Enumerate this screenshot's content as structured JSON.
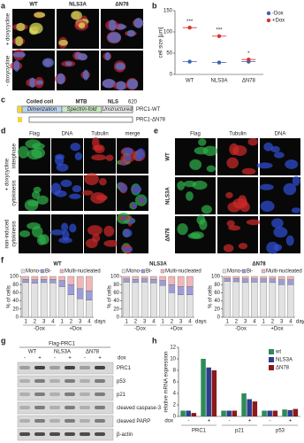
{
  "panel_labels": [
    "a",
    "b",
    "c",
    "d",
    "e",
    "f",
    "g",
    "h"
  ],
  "panel_a": {
    "columns": [
      "WT",
      "NLS3A",
      "ΔN78"
    ],
    "rows": [
      "+ doxycycline",
      "- doxycycline"
    ]
  },
  "panel_c": {
    "domains": [
      "Coiled coil",
      "MTB",
      "NLS"
    ],
    "regions": [
      "Dimerization",
      "Spectrin-fold",
      "Unstructured"
    ],
    "end_residue": "620",
    "constructs": [
      "PRC1-WT",
      "PRC1-ΔN78"
    ]
  },
  "panel_d": {
    "columns": [
      "Flag",
      "DNA",
      "Tubulin",
      "merge"
    ],
    "rows": [
      "interphase",
      "cytokinesis",
      "cytokinesis"
    ],
    "condition": "+ doxycycline",
    "control": "non-induced"
  },
  "panel_e": {
    "columns": [
      "Flag",
      "Tubulin",
      "DNA"
    ],
    "rows": [
      "WT",
      "NLS3A",
      "ΔN78"
    ]
  },
  "panel_g": {
    "construct": "Flag-PRC1",
    "groups": [
      "WT",
      "NLS3A",
      "ΔN78"
    ],
    "dox_label": "dox",
    "lanes": [
      "-",
      "+",
      "-",
      "+",
      "-",
      "+"
    ],
    "bands": [
      "PRC1",
      "p53",
      "p21",
      "cleaved caspase-3",
      "cleaved PARP",
      "β-actin"
    ]
  },
  "chart_data": [
    {
      "type": "dot",
      "ylabel": "cell size [µm]",
      "categories": [
        "WT",
        "NLS3A",
        "ΔN78"
      ],
      "series": [
        {
          "name": "-Dox",
          "color": "#3a62b5",
          "values": [
            30,
            28,
            30
          ]
        },
        {
          "name": "+Dox",
          "color": "#d9342b",
          "values": [
            110,
            90,
            35
          ]
        }
      ],
      "annotations": [
        "***",
        "***",
        "*"
      ],
      "ylim": [
        0,
        150
      ],
      "yticks": [
        0,
        50,
        100,
        150
      ],
      "legend": "upper right"
    },
    {
      "type": "stacked_bar",
      "title": "WT",
      "ylabel": "% of cells",
      "xlabel": "days",
      "categories": [
        "1",
        "2",
        "3",
        "4",
        "1",
        "2",
        "3",
        "4"
      ],
      "groups": [
        "-Dox",
        "+Dox"
      ],
      "series": [
        {
          "name": "Mono-",
          "color": "#e2e2e2",
          "values": [
            85,
            83,
            85,
            84,
            75,
            55,
            45,
            42
          ]
        },
        {
          "name": "Bi-",
          "color": "#9c9cd8",
          "values": [
            8,
            9,
            8,
            9,
            15,
            25,
            25,
            23
          ]
        },
        {
          "name": "Multi-nucleated",
          "color": "#f2b6b6",
          "values": [
            7,
            8,
            7,
            7,
            10,
            20,
            30,
            35
          ]
        }
      ],
      "ylim": [
        0,
        100
      ],
      "yticks": [
        0,
        20,
        40,
        60,
        80,
        100
      ]
    },
    {
      "type": "stacked_bar",
      "title": "NLS3A",
      "ylabel": "% of cells",
      "xlabel": "days",
      "categories": [
        "1",
        "2",
        "3",
        "4",
        "1",
        "2",
        "3",
        "4"
      ],
      "groups": [
        "-Dox",
        "+Dox"
      ],
      "series": [
        {
          "name": "Mono-",
          "color": "#e2e2e2",
          "values": [
            86,
            85,
            86,
            84,
            78,
            60,
            55,
            55
          ]
        },
        {
          "name": "Bi-",
          "color": "#9c9cd8",
          "values": [
            8,
            8,
            8,
            9,
            12,
            20,
            20,
            20
          ]
        },
        {
          "name": "Multi-nucleated",
          "color": "#f2b6b6",
          "values": [
            6,
            7,
            6,
            7,
            10,
            20,
            25,
            25
          ]
        }
      ],
      "ylim": [
        0,
        100
      ],
      "yticks": [
        0,
        20,
        40,
        60,
        80,
        100
      ]
    },
    {
      "type": "stacked_bar",
      "title": "ΔN78",
      "ylabel": "% of cells",
      "xlabel": "days",
      "categories": [
        "1",
        "2",
        "3",
        "4",
        "1",
        "2",
        "3",
        "4"
      ],
      "groups": [
        "-Dox",
        "+Dox"
      ],
      "series": [
        {
          "name": "Mono-",
          "color": "#e2e2e2",
          "values": [
            88,
            87,
            85,
            86,
            86,
            85,
            80,
            80
          ]
        },
        {
          "name": "Bi-",
          "color": "#9c9cd8",
          "values": [
            7,
            8,
            9,
            8,
            8,
            9,
            12,
            12
          ]
        },
        {
          "name": "Multi-nucleated",
          "color": "#f2b6b6",
          "values": [
            5,
            5,
            6,
            6,
            6,
            6,
            8,
            8
          ]
        }
      ],
      "ylim": [
        0,
        100
      ],
      "yticks": [
        0,
        20,
        40,
        60,
        80,
        100
      ]
    },
    {
      "type": "grouped_bar",
      "ylabel": "relative mRNA expression",
      "xlabel": "dox",
      "categories": [
        "-",
        "+",
        "-",
        "+",
        "-",
        "+"
      ],
      "groups": [
        "PRC1",
        "p21",
        "p53"
      ],
      "series": [
        {
          "name": "wt",
          "color": "#2e8b57",
          "values": [
            1,
            10,
            1,
            4,
            1,
            1.2
          ]
        },
        {
          "name": "NLS3A",
          "color": "#2b3f8c",
          "values": [
            1,
            8.5,
            1,
            3,
            1,
            1.1
          ]
        },
        {
          "name": "ΔN78",
          "color": "#8b1a1a",
          "values": [
            0.6,
            8,
            1,
            2.6,
            1,
            1.3
          ]
        }
      ],
      "ylim": [
        0,
        12
      ],
      "yticks": [
        0,
        2,
        4,
        6,
        8,
        10,
        12
      ],
      "legend": "upper right"
    }
  ]
}
